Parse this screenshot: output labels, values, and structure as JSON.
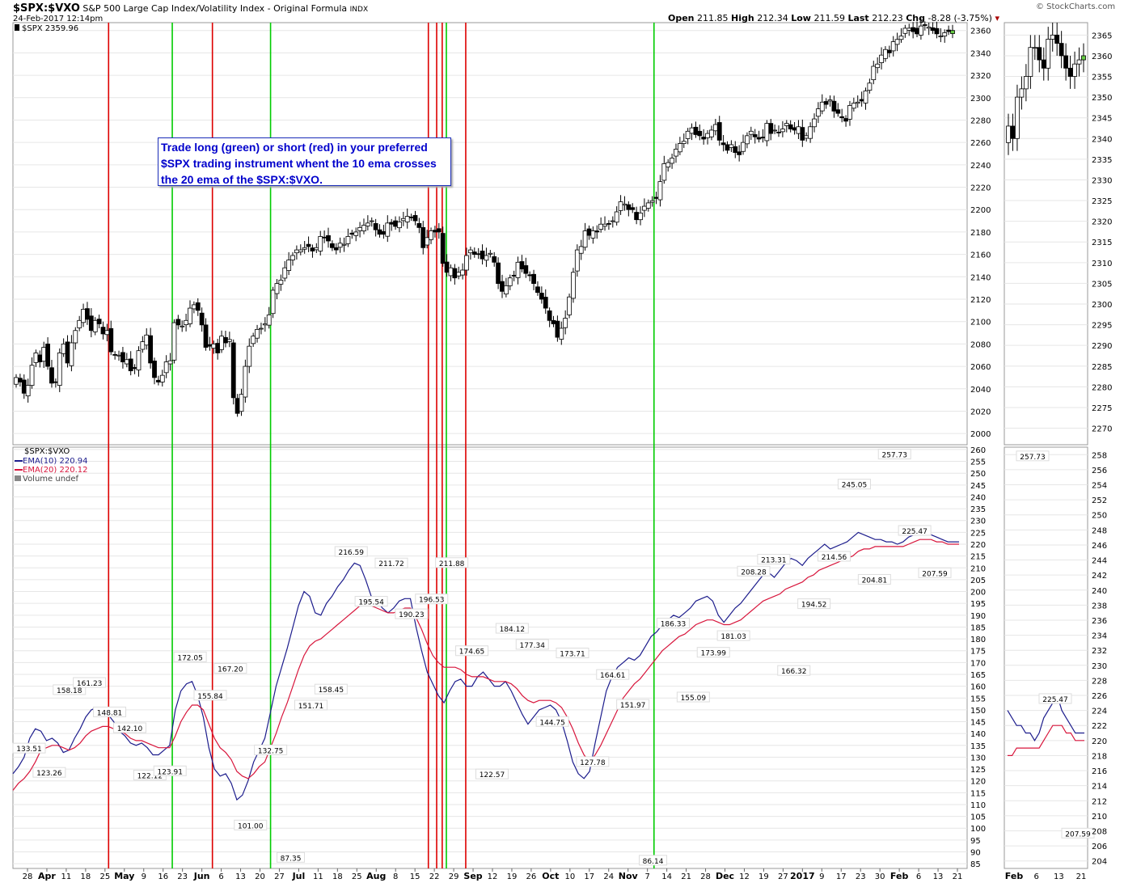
{
  "header": {
    "symbol": "$SPX:$VXO",
    "description": "S&P 500 Large Cap Index/Volatility Index - Original Formula",
    "exchange": "INDX",
    "date": "24-Feb-2017 12:14pm",
    "copyright": "© StockCharts.com",
    "open_label": "Open",
    "open": "211.85",
    "high_label": "High",
    "high": "212.34",
    "low_label": "Low",
    "low": "211.59",
    "last_label": "Last",
    "last": "212.23",
    "chg_label": "Chg",
    "chg": "-8.28 (-3.75%)",
    "chg_marker": "▾"
  },
  "annotation": {
    "lines": [
      "Trade long (green) or short (red) in your preferred",
      "$SPX trading instrument whent the 10 ema crosses",
      "the 20 ema of the $SPX:$VXO."
    ]
  },
  "colors": {
    "long_signal": "#00cc00",
    "short_signal": "#dd0000",
    "ema10": "#1c1c8c",
    "ema20": "#d8163c",
    "up_candle": "#ffffff",
    "down_candle": "#000000",
    "grid": "#e6e6e6",
    "annotation_text": "#0000cc",
    "last_candle_up": "#66cc44"
  },
  "chart_data": [
    {
      "type": "candlestick",
      "panel": "price",
      "legend": "$SPX 2359.96",
      "y_ticks": [
        2000,
        2020,
        2040,
        2060,
        2080,
        2100,
        2120,
        2140,
        2160,
        2180,
        2200,
        2220,
        2240,
        2260,
        2280,
        2300,
        2320,
        2340,
        2360
      ],
      "ylim": [
        1990,
        2367
      ],
      "x_tick_labels": [
        "28",
        "Apr",
        "11",
        "18",
        "25",
        "May",
        "9",
        "16",
        "23",
        "Jun",
        "6",
        "13",
        "20",
        "27",
        "Jul",
        "11",
        "18",
        "25",
        "Aug",
        "8",
        "15",
        "22",
        "29",
        "Sep",
        "12",
        "19",
        "26",
        "Oct",
        "10",
        "17",
        "24",
        "Nov",
        "7",
        "14",
        "21",
        "28",
        "Dec",
        "12",
        "19",
        "27",
        "2017",
        "9",
        "17",
        "23",
        "30",
        "Feb",
        "6",
        "13",
        "21"
      ],
      "closes": [
        2050,
        2046,
        2036,
        2043,
        2061,
        2072,
        2064,
        2077,
        2060,
        2045,
        2046,
        2072,
        2080,
        2063,
        2081,
        2092,
        2101,
        2111,
        2102,
        2092,
        2101,
        2098,
        2089,
        2092,
        2073,
        2070,
        2070,
        2064,
        2066,
        2056,
        2058,
        2074,
        2082,
        2088,
        2063,
        2050,
        2046,
        2052,
        2064,
        2065,
        2099,
        2097,
        2096,
        2101,
        2112,
        2115,
        2110,
        2097,
        2077,
        2078,
        2080,
        2072,
        2087,
        2081,
        2084,
        2032,
        2018,
        2035,
        2060,
        2078,
        2087,
        2093,
        2094,
        2098,
        2106,
        2128,
        2134,
        2137,
        2148,
        2155,
        2159,
        2164,
        2164,
        2166,
        2167,
        2163,
        2166,
        2176,
        2175,
        2172,
        2166,
        2164,
        2170,
        2169,
        2176,
        2178,
        2180,
        2184,
        2186,
        2188,
        2190,
        2182,
        2178,
        2178,
        2188,
        2187,
        2185,
        2189,
        2192,
        2194,
        2193,
        2190,
        2184,
        2166,
        2175,
        2181,
        2180,
        2180,
        2152,
        2144,
        2148,
        2139,
        2144,
        2146,
        2159,
        2164,
        2160,
        2160,
        2156,
        2159,
        2161,
        2153,
        2134,
        2127,
        2132,
        2139,
        2141,
        2153,
        2147,
        2143,
        2141,
        2134,
        2126,
        2120,
        2112,
        2101,
        2098,
        2086,
        2094,
        2103,
        2122,
        2144,
        2164,
        2167,
        2181,
        2177,
        2181,
        2180,
        2187,
        2187,
        2187,
        2190,
        2198,
        2207,
        2205,
        2200,
        2200,
        2191,
        2197,
        2203,
        2206,
        2208,
        2210,
        2225,
        2241,
        2242,
        2246,
        2254,
        2259,
        2261,
        2270,
        2273,
        2267,
        2266,
        2263,
        2268,
        2271,
        2276,
        2262,
        2258,
        2253,
        2258,
        2251,
        2249,
        2260,
        2266,
        2270,
        2265,
        2263,
        2264,
        2277,
        2268,
        2271,
        2269,
        2272,
        2277,
        2272,
        2271,
        2274,
        2262,
        2266,
        2274,
        2281,
        2290,
        2296,
        2294,
        2298,
        2288,
        2286,
        2282,
        2279,
        2293,
        2295,
        2296,
        2297,
        2306,
        2313,
        2328,
        2330,
        2338,
        2343,
        2340,
        2350,
        2352,
        2355,
        2362,
        2362,
        2359,
        2357,
        2364,
        2365,
        2363,
        2360,
        2357,
        2355,
        2358,
        2359,
        2360
      ]
    },
    {
      "type": "line",
      "panel": "indicator",
      "symbol_label": "$SPX:$VXO",
      "series": [
        {
          "name": "EMA(10)",
          "value": "220.94",
          "color": "#1c1c8c",
          "values": [
            123,
            126,
            130,
            138,
            142,
            141,
            137,
            138,
            136,
            132,
            133,
            138,
            142,
            147,
            150,
            151,
            149,
            148,
            145,
            141,
            139,
            136,
            135,
            136,
            134,
            131,
            131,
            133,
            135,
            150,
            158,
            161,
            162,
            156,
            147,
            134,
            125,
            122,
            123,
            119,
            112,
            114,
            120,
            128,
            133,
            138,
            149,
            160,
            168,
            176,
            185,
            194,
            200,
            198,
            191,
            190,
            195,
            198,
            202,
            205,
            209,
            212,
            211,
            205,
            198,
            196,
            193,
            191,
            193,
            196,
            197,
            197,
            185,
            175,
            166,
            161,
            156,
            153,
            158,
            162,
            163,
            160,
            160,
            164,
            166,
            163,
            160,
            160,
            162,
            158,
            153,
            148,
            144,
            147,
            150,
            151,
            152,
            150,
            145,
            137,
            128,
            123,
            121,
            124,
            136,
            147,
            158,
            164,
            168,
            170,
            172,
            171,
            173,
            177,
            181,
            183,
            186,
            188,
            190,
            189,
            191,
            193,
            196,
            197,
            198,
            196,
            190,
            187,
            190,
            193,
            195,
            198,
            201,
            204,
            207,
            208,
            206,
            209,
            212,
            214,
            213,
            211,
            214,
            216,
            218,
            220,
            218,
            219,
            220,
            221,
            223,
            225,
            224,
            223,
            222,
            222,
            221,
            221,
            220,
            221,
            223,
            224,
            225,
            226,
            224,
            223,
            222,
            221,
            221,
            221
          ]
        },
        {
          "name": "EMA(20)",
          "value": "220.12",
          "color": "#d8163c",
          "values": [
            116,
            119,
            121,
            124,
            128,
            133,
            134,
            135,
            135,
            134,
            133,
            134,
            136,
            139,
            141,
            142,
            143,
            143,
            142,
            141,
            140,
            138,
            137,
            137,
            136,
            135,
            134,
            134,
            134,
            139,
            145,
            149,
            152,
            152,
            150,
            144,
            138,
            134,
            132,
            129,
            124,
            122,
            121,
            123,
            126,
            128,
            134,
            140,
            147,
            153,
            160,
            167,
            173,
            177,
            179,
            180,
            182,
            184,
            186,
            188,
            190,
            192,
            194,
            195,
            194,
            193,
            192,
            191,
            191,
            192,
            193,
            193,
            189,
            184,
            178,
            173,
            170,
            168,
            168,
            168,
            167,
            165,
            164,
            164,
            164,
            163,
            162,
            162,
            162,
            161,
            159,
            156,
            154,
            153,
            154,
            154,
            154,
            153,
            151,
            147,
            142,
            136,
            131,
            128,
            131,
            135,
            140,
            145,
            150,
            155,
            158,
            161,
            163,
            166,
            169,
            172,
            175,
            177,
            179,
            181,
            182,
            184,
            186,
            187,
            188,
            188,
            187,
            186,
            186,
            187,
            188,
            190,
            192,
            194,
            196,
            197,
            198,
            199,
            201,
            202,
            203,
            204,
            206,
            207,
            209,
            210,
            211,
            212,
            213,
            214,
            215,
            217,
            218,
            218,
            219,
            219,
            219,
            219,
            219,
            219,
            220,
            221,
            222,
            222,
            222,
            221,
            221,
            220,
            220,
            220
          ]
        }
      ],
      "volume_label": "Volume undef",
      "y_ticks": [
        85,
        90,
        95,
        100,
        105,
        110,
        115,
        120,
        125,
        130,
        135,
        140,
        145,
        150,
        155,
        160,
        165,
        170,
        175,
        180,
        185,
        190,
        195,
        200,
        205,
        210,
        215,
        220,
        225,
        230,
        235,
        240,
        245,
        250,
        255,
        260
      ],
      "ylim": [
        83,
        261
      ],
      "point_labels": [
        "133.51",
        "123.26",
        "158.18",
        "161.23",
        "148.81",
        "142.10",
        "122.12",
        "123.91",
        "172.05",
        "155.84",
        "167.20",
        "101.00",
        "132.75",
        "87.35",
        "151.71",
        "158.45",
        "216.59",
        "195.54",
        "211.72",
        "190.23",
        "196.53",
        "211.88",
        "174.65",
        "122.57",
        "184.12",
        "177.34",
        "144.75",
        "173.71",
        "127.78",
        "164.61",
        "151.97",
        "86.14",
        "186.33",
        "155.09",
        "173.99",
        "181.03",
        "208.28",
        "213.31",
        "166.32",
        "194.52",
        "214.56",
        "245.05",
        "204.81",
        "257.73",
        "225.47",
        "207.59"
      ]
    },
    {
      "type": "candlestick",
      "panel": "price-zoom",
      "y_ticks": [
        2270,
        2275,
        2280,
        2285,
        2290,
        2295,
        2300,
        2305,
        2310,
        2315,
        2320,
        2325,
        2330,
        2335,
        2340,
        2345,
        2350,
        2355,
        2360,
        2365
      ],
      "ylim": [
        2266,
        2368
      ],
      "x_tick_labels": [
        "Feb",
        "6",
        "13",
        "21"
      ]
    },
    {
      "type": "line",
      "panel": "indicator-zoom",
      "y_ticks": [
        204,
        206,
        208,
        210,
        212,
        214,
        216,
        218,
        220,
        222,
        224,
        226,
        228,
        230,
        232,
        234,
        236,
        238,
        240,
        242,
        244,
        246,
        248,
        250,
        252,
        254,
        256,
        258
      ],
      "ylim": [
        203,
        259
      ],
      "point_labels": [
        "257.73",
        "225.47",
        "207.59"
      ]
    }
  ],
  "signals": {
    "short_dates": [
      "May 2",
      "Jun 9",
      "Aug 26",
      "Aug 29",
      "Aug 31",
      "Sep 9"
    ],
    "long_dates": [
      "May 25",
      "Jun 30",
      "Sep 2",
      "Nov 16"
    ]
  }
}
